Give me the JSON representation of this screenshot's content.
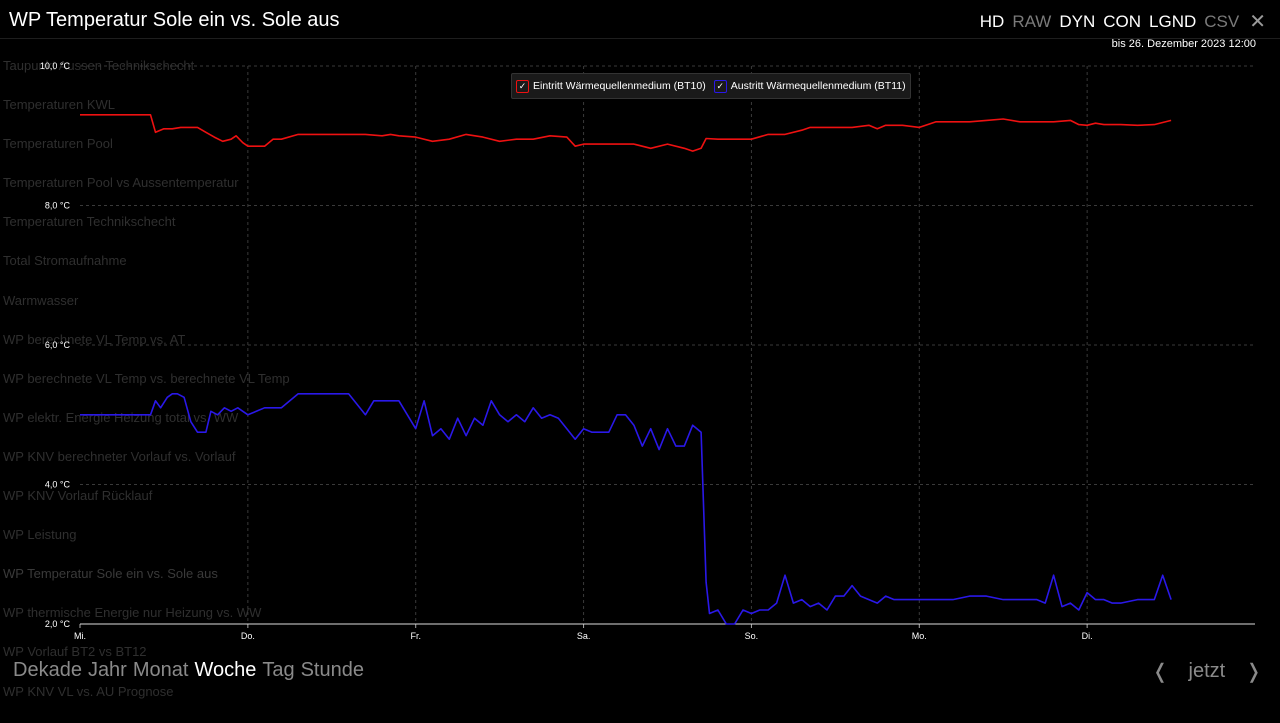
{
  "header": {
    "title": "WP Temperatur Sole ein vs. Sole aus",
    "modes": [
      {
        "label": "HD",
        "on": true
      },
      {
        "label": "RAW",
        "on": false
      },
      {
        "label": "DYN",
        "on": true
      },
      {
        "label": "CON",
        "on": true
      },
      {
        "label": "LGND",
        "on": true
      },
      {
        "label": "CSV",
        "on": false
      }
    ],
    "close_icon": "close-icon",
    "range_label": "bis 26. Dezember 2023 12:00"
  },
  "background_menu": [
    "Taupunkt Aussen Technikschecht",
    "Temperaturen KWL",
    "Temperaturen Pool",
    "Temperaturen Pool vs Aussentemperatur",
    "Temperaturen Technikschecht",
    "Total Stromaufnahme",
    "Warmwasser",
    "WP berechnete VL Temp vs. AT",
    "WP berechnete VL Temp vs. berechnete VL Temp",
    "WP elektr. Energie Heizung total vs. WW",
    "WP KNV berechneter Vorlauf vs. Vorlauf",
    "WP KNV Vorlauf Rücklauf",
    "WP Leistung",
    "WP Temperatur Sole ein vs. Sole aus",
    "WP thermische Energie nur Heizung vs. WW",
    "WP Vorlauf BT2 vs BT12",
    "WP KNV VL vs. AU Prognose"
  ],
  "footer": {
    "periods": [
      "Dekade",
      "Jahr",
      "Monat",
      "Woche",
      "Tag",
      "Stunde"
    ],
    "active_period": "Woche",
    "now_label": "jetzt",
    "prev_icon": "chevron-left-icon",
    "next_icon": "chevron-right-icon"
  },
  "chart_data": {
    "type": "line",
    "categories": [
      "Mi.",
      "Do.",
      "Fr.",
      "Sa.",
      "So.",
      "Mo.",
      "Di."
    ],
    "y_ticks": [
      "2,0 °C",
      "4,0 °C",
      "6,0 °C",
      "8,0 °C",
      "10,0 °C"
    ],
    "ylim": [
      2,
      10
    ],
    "grid": true,
    "legend_position": "top-center",
    "x_range": [
      0,
      7
    ],
    "series": [
      {
        "name": "Eintritt Wärmequellenmedium (BT10)",
        "color": "#ee1111",
        "x": [
          0,
          0.42,
          0.45,
          0.5,
          0.55,
          0.6,
          0.7,
          0.75,
          0.8,
          0.85,
          0.9,
          0.93,
          0.97,
          1.0,
          1.1,
          1.15,
          1.2,
          1.3,
          1.4,
          1.5,
          1.6,
          1.7,
          1.8,
          1.85,
          1.9,
          2.0,
          2.1,
          2.2,
          2.3,
          2.4,
          2.5,
          2.6,
          2.7,
          2.8,
          2.9,
          2.95,
          3.0,
          3.1,
          3.2,
          3.3,
          3.4,
          3.5,
          3.6,
          3.65,
          3.7,
          3.73,
          3.8,
          3.9,
          4.0,
          4.1,
          4.2,
          4.3,
          4.35,
          4.4,
          4.5,
          4.6,
          4.7,
          4.75,
          4.8,
          4.9,
          5.0,
          5.1,
          5.2,
          5.3,
          5.4,
          5.5,
          5.6,
          5.7,
          5.8,
          5.9,
          5.95,
          6.0,
          6.05,
          6.1,
          6.2,
          6.3,
          6.4,
          6.5
        ],
        "y": [
          9.3,
          9.3,
          9.05,
          9.1,
          9.1,
          9.12,
          9.12,
          9.05,
          8.98,
          8.92,
          8.95,
          9.0,
          8.9,
          8.85,
          8.85,
          8.95,
          8.95,
          9.02,
          9.02,
          9.02,
          9.02,
          9.02,
          9.0,
          9.02,
          9.0,
          8.98,
          8.92,
          8.95,
          9.02,
          8.98,
          8.92,
          8.95,
          8.95,
          9.0,
          8.98,
          8.85,
          8.88,
          8.88,
          8.88,
          8.88,
          8.82,
          8.88,
          8.82,
          8.78,
          8.82,
          8.96,
          8.95,
          8.95,
          8.95,
          9.02,
          9.02,
          9.08,
          9.12,
          9.12,
          9.12,
          9.12,
          9.15,
          9.1,
          9.15,
          9.15,
          9.12,
          9.2,
          9.2,
          9.2,
          9.22,
          9.24,
          9.2,
          9.2,
          9.2,
          9.22,
          9.16,
          9.15,
          9.18,
          9.16,
          9.16,
          9.15,
          9.16,
          9.22
        ]
      },
      {
        "name": "Austritt Wärmequellenmedium (BT11)",
        "color": "#2a18e8",
        "x": [
          0,
          0.42,
          0.45,
          0.48,
          0.52,
          0.55,
          0.58,
          0.62,
          0.66,
          0.7,
          0.75,
          0.78,
          0.82,
          0.86,
          0.9,
          0.94,
          0.97,
          1.0,
          1.05,
          1.1,
          1.15,
          1.2,
          1.3,
          1.4,
          1.5,
          1.6,
          1.7,
          1.75,
          1.8,
          1.85,
          1.9,
          2.0,
          2.05,
          2.1,
          2.15,
          2.2,
          2.25,
          2.3,
          2.35,
          2.4,
          2.45,
          2.5,
          2.55,
          2.6,
          2.65,
          2.7,
          2.75,
          2.8,
          2.85,
          2.9,
          2.95,
          3.0,
          3.05,
          3.1,
          3.15,
          3.2,
          3.25,
          3.3,
          3.35,
          3.4,
          3.45,
          3.5,
          3.55,
          3.6,
          3.65,
          3.7,
          3.73,
          3.75,
          3.8,
          3.85,
          3.9,
          3.95,
          4.0,
          4.05,
          4.1,
          4.15,
          4.2,
          4.25,
          4.3,
          4.35,
          4.4,
          4.45,
          4.5,
          4.55,
          4.6,
          4.65,
          4.7,
          4.75,
          4.8,
          4.85,
          4.9,
          4.95,
          5.0,
          5.05,
          5.1,
          5.15,
          5.2,
          5.3,
          5.4,
          5.5,
          5.6,
          5.65,
          5.7,
          5.75,
          5.8,
          5.85,
          5.9,
          5.95,
          6.0,
          6.05,
          6.1,
          6.15,
          6.2,
          6.3,
          6.4,
          6.45,
          6.5
        ],
        "y": [
          5.0,
          5.0,
          5.2,
          5.1,
          5.25,
          5.3,
          5.3,
          5.25,
          4.9,
          4.75,
          4.75,
          5.05,
          5.0,
          5.1,
          5.05,
          5.1,
          5.05,
          5.0,
          5.05,
          5.1,
          5.1,
          5.1,
          5.3,
          5.3,
          5.3,
          5.3,
          5.0,
          5.2,
          5.2,
          5.2,
          5.2,
          4.8,
          5.2,
          4.7,
          4.8,
          4.65,
          4.95,
          4.7,
          4.95,
          4.85,
          5.2,
          5.0,
          4.9,
          5.0,
          4.9,
          5.1,
          4.95,
          5.0,
          4.95,
          4.8,
          4.65,
          4.8,
          4.75,
          4.75,
          4.75,
          5.0,
          5.0,
          4.85,
          4.55,
          4.8,
          4.5,
          4.8,
          4.55,
          4.55,
          4.85,
          4.75,
          2.6,
          2.15,
          2.2,
          2.0,
          2.0,
          2.2,
          2.15,
          2.2,
          2.2,
          2.3,
          2.7,
          2.3,
          2.35,
          2.25,
          2.3,
          2.2,
          2.4,
          2.4,
          2.55,
          2.4,
          2.35,
          2.3,
          2.4,
          2.35,
          2.35,
          2.35,
          2.35,
          2.35,
          2.35,
          2.35,
          2.35,
          2.4,
          2.4,
          2.35,
          2.35,
          2.35,
          2.35,
          2.3,
          2.7,
          2.25,
          2.3,
          2.2,
          2.45,
          2.35,
          2.35,
          2.3,
          2.3,
          2.35,
          2.35,
          2.7,
          2.35
        ]
      }
    ]
  }
}
